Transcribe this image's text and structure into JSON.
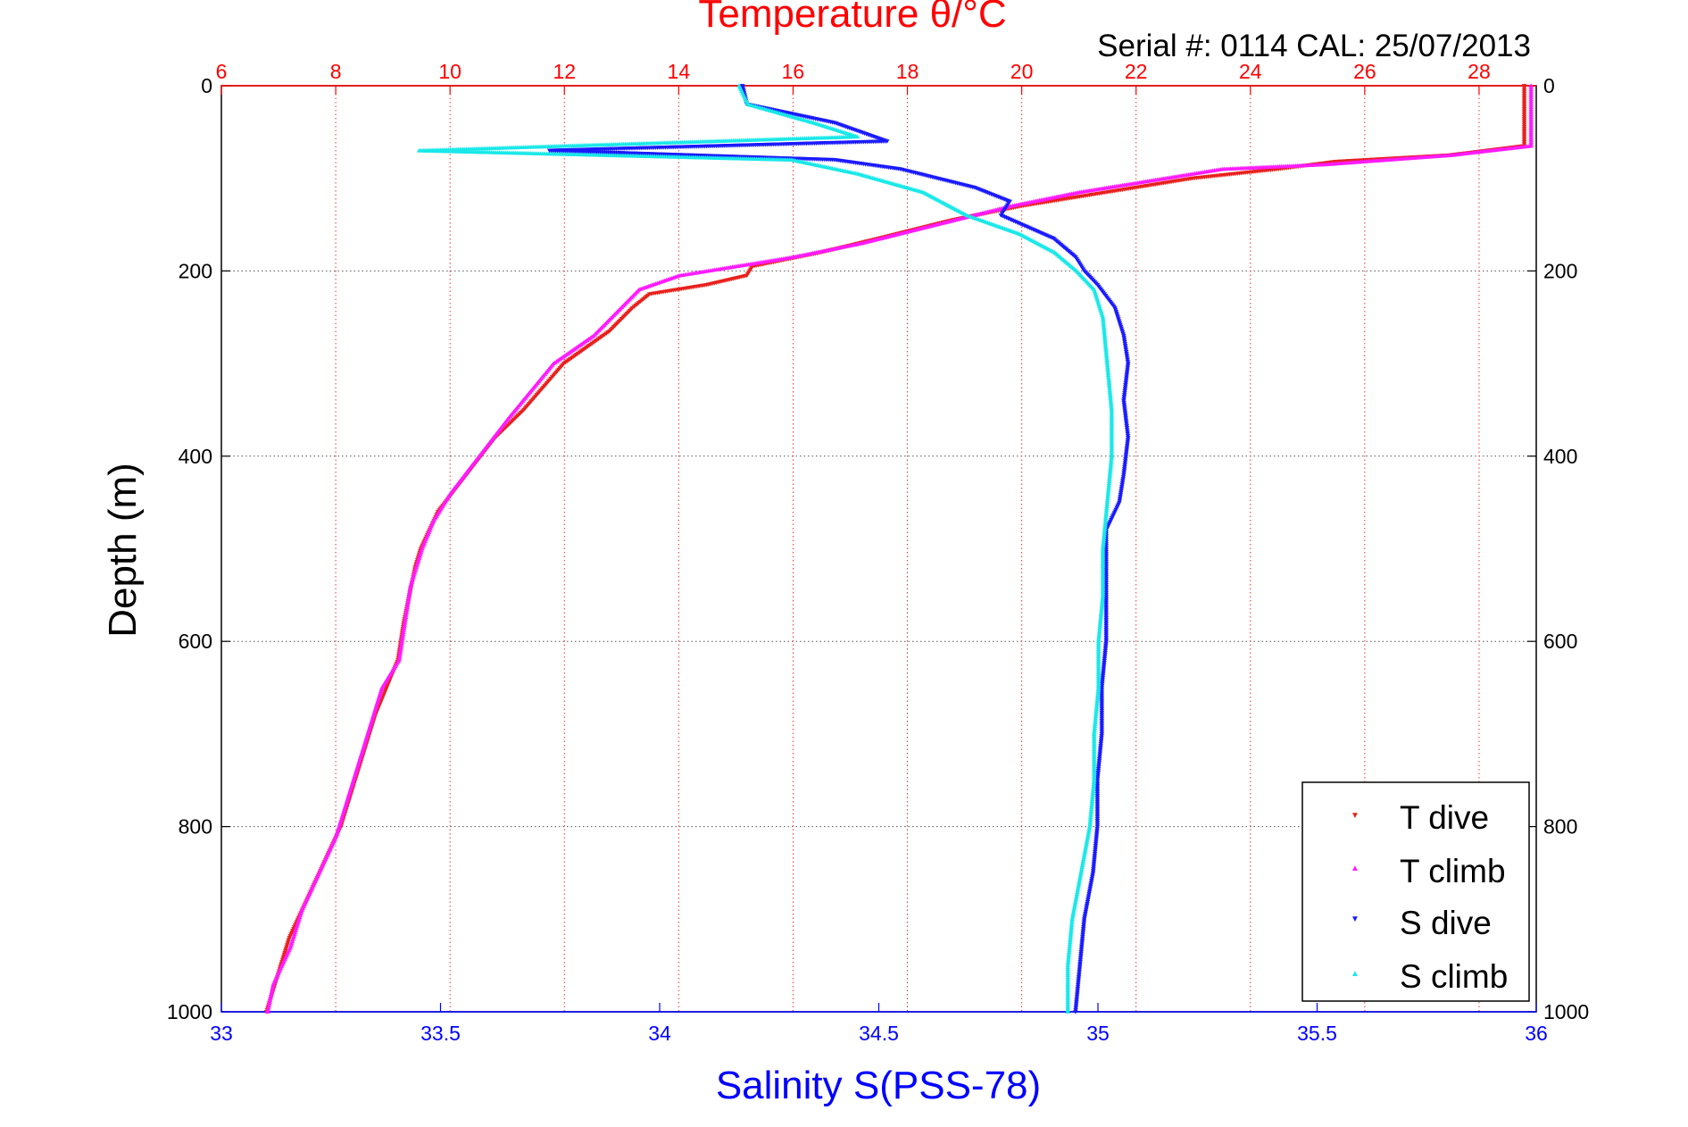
{
  "chart_data": {
    "type": "scatter",
    "title": "Temperature θ/°C",
    "subtitle": "Serial #: 0114  CAL: 25/07/2013",
    "ylabel": "Depth (m)",
    "xlabel": "Salinity S(PSS-78)",
    "x_top_label": "Temperature θ/°C",
    "ylim": [
      0,
      1000
    ],
    "y_reversed": true,
    "y_ticks": [
      0,
      200,
      400,
      600,
      800,
      1000
    ],
    "temperature_axis": {
      "lim": [
        6,
        29
      ],
      "ticks": [
        6,
        8,
        10,
        12,
        14,
        16,
        18,
        20,
        22,
        24,
        26,
        28
      ]
    },
    "salinity_axis": {
      "lim": [
        33,
        36
      ],
      "ticks": [
        33,
        33.5,
        34,
        34.5,
        35,
        35.5,
        36
      ]
    },
    "grid": true,
    "legend_position": "bottom-right",
    "colors": {
      "t_dive": "#e8201c",
      "t_climb": "#ff1aff",
      "s_dive": "#1a1aff",
      "s_climb": "#19e8e8",
      "temperature_axis": "#ff0000",
      "salinity_axis": "#0000ff"
    },
    "series": [
      {
        "name": "T dive",
        "axis": "temperature",
        "marker": "triangle-down",
        "points": [
          [
            28.8,
            0
          ],
          [
            28.8,
            40
          ],
          [
            28.8,
            65
          ],
          [
            27.5,
            75
          ],
          [
            25.5,
            82
          ],
          [
            24.5,
            90
          ],
          [
            23.0,
            100
          ],
          [
            21.5,
            115
          ],
          [
            20.0,
            130
          ],
          [
            18.8,
            145
          ],
          [
            17.5,
            165
          ],
          [
            16.5,
            180
          ],
          [
            15.3,
            195
          ],
          [
            15.2,
            205
          ],
          [
            14.5,
            215
          ],
          [
            13.5,
            225
          ],
          [
            13.2,
            240
          ],
          [
            12.8,
            265
          ],
          [
            12.0,
            300
          ],
          [
            11.3,
            350
          ],
          [
            10.8,
            380
          ],
          [
            10.3,
            420
          ],
          [
            9.8,
            460
          ],
          [
            9.5,
            500
          ],
          [
            9.4,
            520
          ],
          [
            9.3,
            550
          ],
          [
            9.2,
            580
          ],
          [
            9.1,
            620
          ],
          [
            8.9,
            650
          ],
          [
            8.7,
            680
          ],
          [
            8.5,
            720
          ],
          [
            8.3,
            760
          ],
          [
            8.1,
            800
          ],
          [
            7.8,
            840
          ],
          [
            7.5,
            880
          ],
          [
            7.2,
            920
          ],
          [
            7.0,
            960
          ],
          [
            6.8,
            1000
          ]
        ]
      },
      {
        "name": "T climb",
        "axis": "temperature",
        "marker": "triangle-up",
        "points": [
          [
            28.9,
            0
          ],
          [
            28.9,
            40
          ],
          [
            28.9,
            65
          ],
          [
            27.5,
            75
          ],
          [
            25.3,
            85
          ],
          [
            23.5,
            90
          ],
          [
            22.5,
            100
          ],
          [
            21.0,
            115
          ],
          [
            19.8,
            130
          ],
          [
            18.5,
            150
          ],
          [
            17.2,
            170
          ],
          [
            16.0,
            185
          ],
          [
            15.0,
            195
          ],
          [
            14.0,
            205
          ],
          [
            13.3,
            220
          ],
          [
            12.9,
            245
          ],
          [
            12.5,
            270
          ],
          [
            11.8,
            300
          ],
          [
            11.0,
            360
          ],
          [
            10.5,
            400
          ],
          [
            10.0,
            440
          ],
          [
            9.7,
            470
          ],
          [
            9.5,
            500
          ],
          [
            9.3,
            540
          ],
          [
            9.2,
            580
          ],
          [
            9.1,
            620
          ],
          [
            8.8,
            650
          ],
          [
            8.6,
            690
          ],
          [
            8.4,
            730
          ],
          [
            8.2,
            770
          ],
          [
            8.0,
            810
          ],
          [
            7.7,
            850
          ],
          [
            7.4,
            890
          ],
          [
            7.2,
            930
          ],
          [
            6.9,
            970
          ],
          [
            6.8,
            1000
          ]
        ]
      },
      {
        "name": "S dive",
        "axis": "salinity",
        "marker": "triangle-down",
        "points": [
          [
            34.19,
            0
          ],
          [
            34.2,
            20
          ],
          [
            34.4,
            40
          ],
          [
            34.52,
            60
          ],
          [
            33.75,
            70
          ],
          [
            34.4,
            80
          ],
          [
            34.55,
            90
          ],
          [
            34.72,
            110
          ],
          [
            34.8,
            125
          ],
          [
            34.78,
            140
          ],
          [
            34.9,
            165
          ],
          [
            34.95,
            185
          ],
          [
            34.97,
            200
          ],
          [
            35.0,
            215
          ],
          [
            35.04,
            240
          ],
          [
            35.06,
            270
          ],
          [
            35.07,
            300
          ],
          [
            35.06,
            340
          ],
          [
            35.07,
            380
          ],
          [
            35.06,
            420
          ],
          [
            35.05,
            450
          ],
          [
            35.02,
            480
          ],
          [
            35.02,
            520
          ],
          [
            35.02,
            560
          ],
          [
            35.02,
            600
          ],
          [
            35.01,
            650
          ],
          [
            35.01,
            700
          ],
          [
            35.0,
            750
          ],
          [
            35.0,
            800
          ],
          [
            34.99,
            850
          ],
          [
            34.97,
            900
          ],
          [
            34.96,
            950
          ],
          [
            34.95,
            1000
          ]
        ]
      },
      {
        "name": "S climb",
        "axis": "salinity",
        "marker": "triangle-up",
        "points": [
          [
            34.18,
            0
          ],
          [
            34.2,
            20
          ],
          [
            34.35,
            40
          ],
          [
            34.45,
            55
          ],
          [
            33.45,
            70
          ],
          [
            34.3,
            80
          ],
          [
            34.45,
            95
          ],
          [
            34.6,
            115
          ],
          [
            34.7,
            140
          ],
          [
            34.82,
            160
          ],
          [
            34.9,
            180
          ],
          [
            34.95,
            200
          ],
          [
            34.99,
            220
          ],
          [
            35.01,
            250
          ],
          [
            35.02,
            300
          ],
          [
            35.03,
            350
          ],
          [
            35.03,
            400
          ],
          [
            35.02,
            450
          ],
          [
            35.01,
            500
          ],
          [
            35.01,
            550
          ],
          [
            35.0,
            600
          ],
          [
            35.0,
            650
          ],
          [
            34.99,
            700
          ],
          [
            34.99,
            750
          ],
          [
            34.98,
            800
          ],
          [
            34.96,
            850
          ],
          [
            34.94,
            900
          ],
          [
            34.93,
            950
          ],
          [
            34.93,
            1000
          ]
        ]
      }
    ]
  }
}
